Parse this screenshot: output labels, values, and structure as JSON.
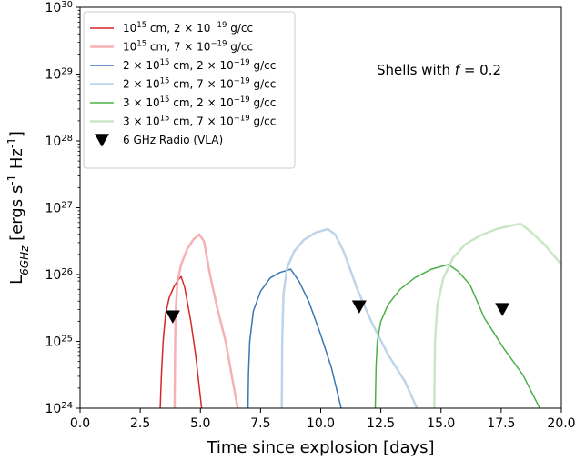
{
  "chart_data": {
    "type": "line",
    "xlabel": "Time since explosion [days]",
    "ylabel_main": "L",
    "ylabel_sub": "6GHz",
    "ylabel_rest": " [ergs s",
    "ylabel_rest2": " Hz",
    "ylabel_rest3": "]",
    "ylabel_sup": "-1",
    "xlim": [
      0,
      20
    ],
    "ylim_log10": [
      24,
      30
    ],
    "yscale": "log",
    "x_ticks": [
      "0.0",
      "2.5",
      "5.0",
      "7.5",
      "10.0",
      "12.5",
      "15.0",
      "17.5",
      "20.0"
    ],
    "x_tick_values": [
      0,
      2.5,
      5,
      7.5,
      10,
      12.5,
      15,
      17.5,
      20
    ],
    "y_tick_exponents": [
      "24",
      "25",
      "26",
      "27",
      "28",
      "29",
      "30"
    ],
    "y_tick_base": "10",
    "grid": false,
    "legend_position": "upper-left",
    "annotation": {
      "prefix": "Shells with ",
      "var": "f",
      "suffix": " = 0.2"
    },
    "series": [
      {
        "label_parts": [
          "10",
          "15",
          " cm, 2 × 10",
          "−19",
          " g/cc"
        ],
        "color": "#d62728",
        "alpha": 1.0,
        "width": 1.5,
        "points": [
          [
            3.33,
            24
          ],
          [
            3.38,
            24.5
          ],
          [
            3.45,
            25.0
          ],
          [
            3.55,
            25.4
          ],
          [
            3.7,
            25.65
          ],
          [
            3.9,
            25.82
          ],
          [
            4.1,
            25.93
          ],
          [
            4.2,
            25.97
          ],
          [
            4.35,
            25.8
          ],
          [
            4.6,
            25.3
          ],
          [
            4.8,
            24.8
          ],
          [
            5.05,
            24.0
          ]
        ]
      },
      {
        "label_parts": [
          "10",
          "15",
          " cm, 7 × 10",
          "−19",
          " g/cc"
        ],
        "color": "#f4a3a8",
        "alpha": 0.85,
        "width": 2.5,
        "points": [
          [
            3.93,
            24
          ],
          [
            3.95,
            25.0
          ],
          [
            3.98,
            25.5
          ],
          [
            4.05,
            25.9
          ],
          [
            4.2,
            26.15
          ],
          [
            4.45,
            26.38
          ],
          [
            4.7,
            26.52
          ],
          [
            4.95,
            26.6
          ],
          [
            5.15,
            26.5
          ],
          [
            5.4,
            26.0
          ],
          [
            5.7,
            25.5
          ],
          [
            6.05,
            25.0
          ],
          [
            6.55,
            24.0
          ]
        ]
      },
      {
        "label_parts": [
          "2 × 10",
          "15",
          " cm, 2 × 10",
          "−19",
          " g/cc"
        ],
        "color": "#3a78b5",
        "alpha": 1.0,
        "width": 1.5,
        "points": [
          [
            6.98,
            24
          ],
          [
            7.0,
            24.5
          ],
          [
            7.05,
            25.0
          ],
          [
            7.2,
            25.45
          ],
          [
            7.5,
            25.75
          ],
          [
            7.9,
            25.95
          ],
          [
            8.3,
            26.03
          ],
          [
            8.75,
            26.08
          ],
          [
            9.1,
            25.9
          ],
          [
            9.5,
            25.6
          ],
          [
            10.0,
            25.1
          ],
          [
            10.45,
            24.6
          ],
          [
            10.85,
            24.0
          ]
        ]
      },
      {
        "label_parts": [
          "2 × 10",
          "15",
          " cm, 7 × 10",
          "−19",
          " g/cc"
        ],
        "color": "#b9d2e8",
        "alpha": 0.95,
        "width": 2.5,
        "points": [
          [
            8.38,
            24
          ],
          [
            8.4,
            25.0
          ],
          [
            8.45,
            25.7
          ],
          [
            8.6,
            26.1
          ],
          [
            8.9,
            26.35
          ],
          [
            9.3,
            26.52
          ],
          [
            9.8,
            26.63
          ],
          [
            10.3,
            26.68
          ],
          [
            10.6,
            26.6
          ],
          [
            10.95,
            26.35
          ],
          [
            11.5,
            25.8
          ],
          [
            12.1,
            25.3
          ],
          [
            12.8,
            24.8
          ],
          [
            13.5,
            24.4
          ],
          [
            14.0,
            24.0
          ]
        ]
      },
      {
        "label_parts": [
          "3 × 10",
          "15",
          " cm, 2 × 10",
          "−19",
          " g/cc"
        ],
        "color": "#4daf4a",
        "alpha": 1.0,
        "width": 1.5,
        "points": [
          [
            12.27,
            24
          ],
          [
            12.3,
            24.6
          ],
          [
            12.35,
            25.0
          ],
          [
            12.5,
            25.3
          ],
          [
            12.8,
            25.55
          ],
          [
            13.3,
            25.78
          ],
          [
            13.9,
            25.95
          ],
          [
            14.6,
            26.08
          ],
          [
            15.3,
            26.15
          ],
          [
            15.7,
            26.05
          ],
          [
            16.2,
            25.85
          ],
          [
            16.8,
            25.35
          ],
          [
            17.6,
            24.9
          ],
          [
            18.4,
            24.5
          ],
          [
            19.1,
            24.0
          ]
        ]
      },
      {
        "label_parts": [
          "3 × 10",
          "15",
          " cm, 7 × 10",
          "−19",
          " g/cc"
        ],
        "color": "#c7e6c2",
        "alpha": 0.95,
        "width": 2.5,
        "points": [
          [
            14.72,
            24
          ],
          [
            14.75,
            25.0
          ],
          [
            14.85,
            25.55
          ],
          [
            15.1,
            25.95
          ],
          [
            15.5,
            26.25
          ],
          [
            16.0,
            26.45
          ],
          [
            16.6,
            26.58
          ],
          [
            17.3,
            26.68
          ],
          [
            18.0,
            26.74
          ],
          [
            18.3,
            26.76
          ],
          [
            18.7,
            26.65
          ],
          [
            19.3,
            26.45
          ],
          [
            20.0,
            26.15
          ]
        ]
      }
    ],
    "markers": {
      "label": "6 GHz Radio (VLA)",
      "shape": "triangle-down",
      "color": "#000000",
      "points": [
        [
          3.85,
          25.37
        ],
        [
          11.6,
          25.52
        ],
        [
          17.55,
          25.48
        ]
      ]
    }
  }
}
